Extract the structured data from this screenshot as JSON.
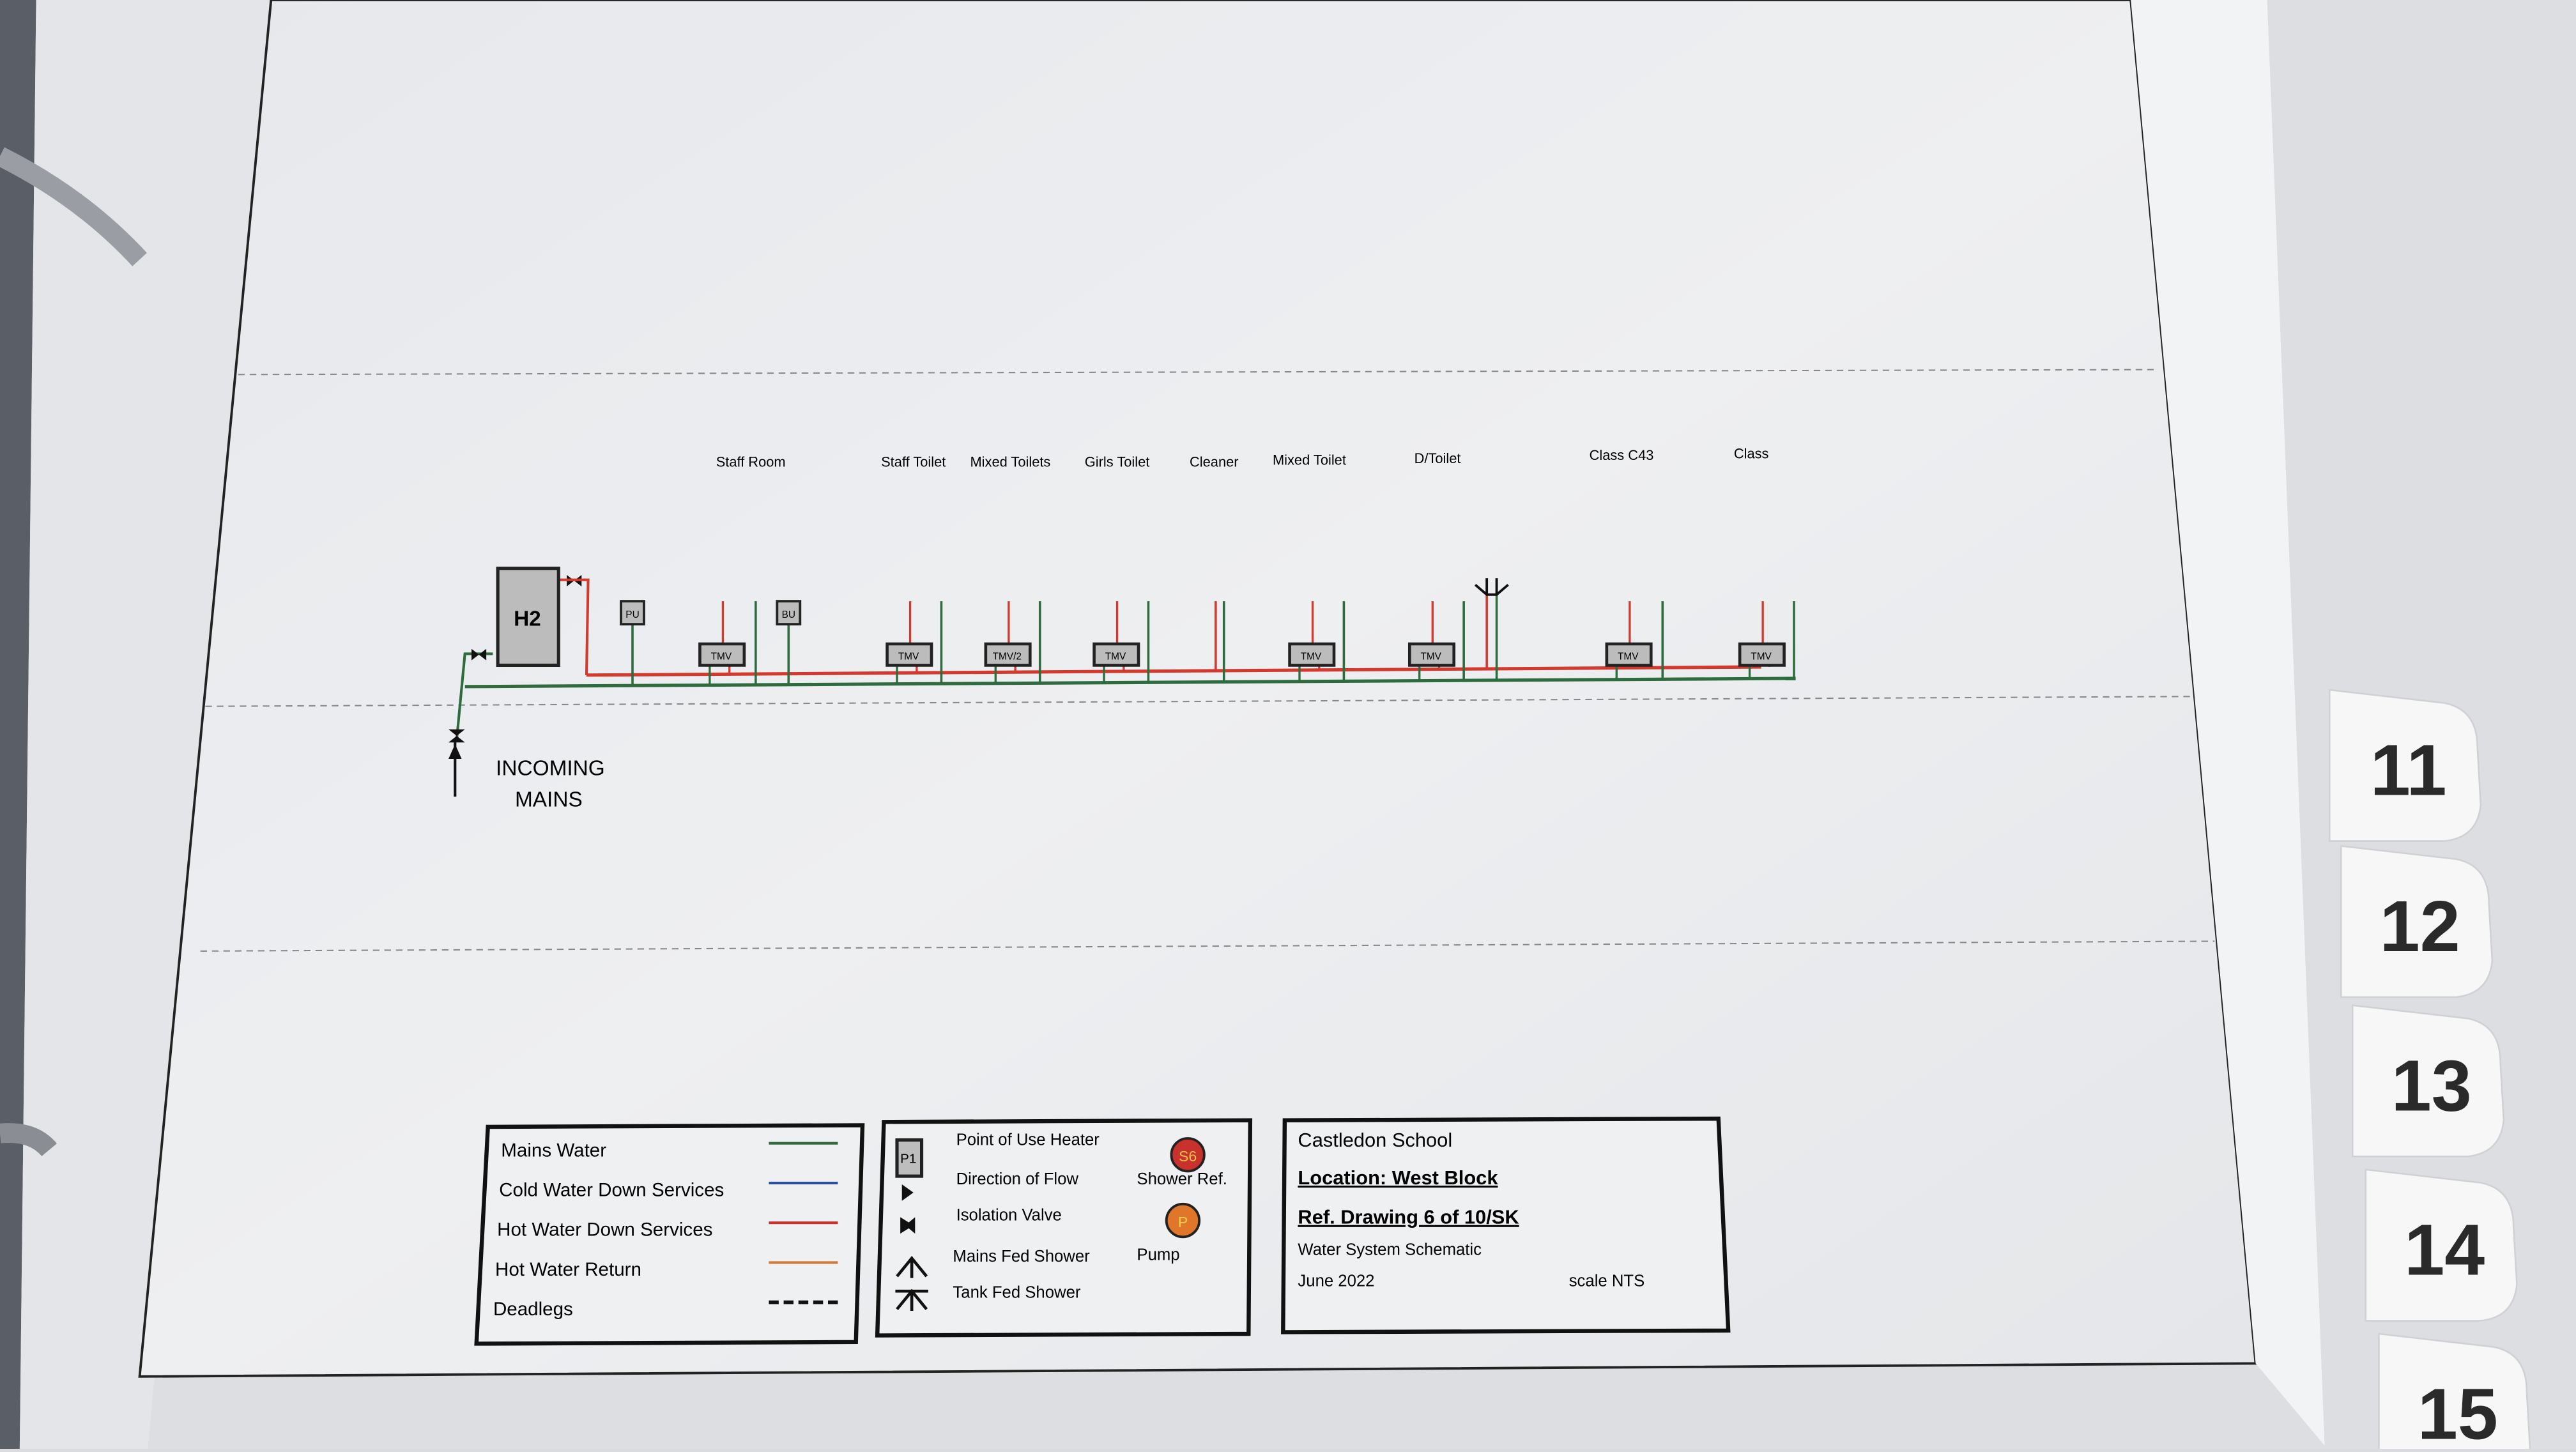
{
  "diagram": {
    "heater_label": "H2",
    "units": [
      "PU",
      "BU"
    ],
    "incoming_label": [
      "INCOMING",
      "MAINS"
    ],
    "rooms": [
      {
        "label": "Staff Room",
        "valve": "TMV"
      },
      {
        "label": "Staff Toilet",
        "valve": "TMV"
      },
      {
        "label": "Mixed Toilets",
        "valve": "TMV/2"
      },
      {
        "label": "Girls Toilet",
        "valve": "TMV"
      },
      {
        "label": "Cleaner",
        "valve": ""
      },
      {
        "label": "Mixed Toilet",
        "valve": "TMV"
      },
      {
        "label": "D/Toilet",
        "valve": "TMV"
      },
      {
        "label": "Class C43",
        "valve": "TMV"
      },
      {
        "label": "Class",
        "valve": "TMV"
      }
    ]
  },
  "legend_lines": {
    "items": [
      {
        "label": "Mains Water",
        "color": "#2e6b3e",
        "style": "solid"
      },
      {
        "label": "Cold Water Down Services",
        "color": "#2f4f9a",
        "style": "solid"
      },
      {
        "label": "Hot Water Down Services",
        "color": "#c8312c",
        "style": "solid"
      },
      {
        "label": "Hot Water Return",
        "color": "#d07a3c",
        "style": "solid"
      },
      {
        "label": "Deadlegs",
        "color": "#111111",
        "style": "dashed"
      }
    ]
  },
  "legend_symbols": {
    "poe_heater": {
      "label": "Point of Use Heater",
      "tag": "P1"
    },
    "direction_of_flow": "Direction of Flow",
    "isolation_valve": "Isolation Valve",
    "mains_fed_shower": "Mains Fed Shower",
    "tank_fed_shower": "Tank Fed Shower",
    "shower_ref": {
      "label": "Shower Ref.",
      "tag": "S6",
      "color": "#c8312c"
    },
    "pump": {
      "label": "Pump",
      "tag": "P",
      "color": "#e0762a"
    }
  },
  "title_block": {
    "school": "Castledon School",
    "location": "Location: West Block",
    "ref": "Ref. Drawing 6 of 10/SK",
    "description": "Water System Schematic",
    "date": "June 2022",
    "scale": "scale NTS"
  },
  "tabs": [
    "11",
    "12",
    "13",
    "14",
    "15"
  ],
  "colors": {
    "mains": "#2e6b3e",
    "hot": "#d23a30"
  }
}
